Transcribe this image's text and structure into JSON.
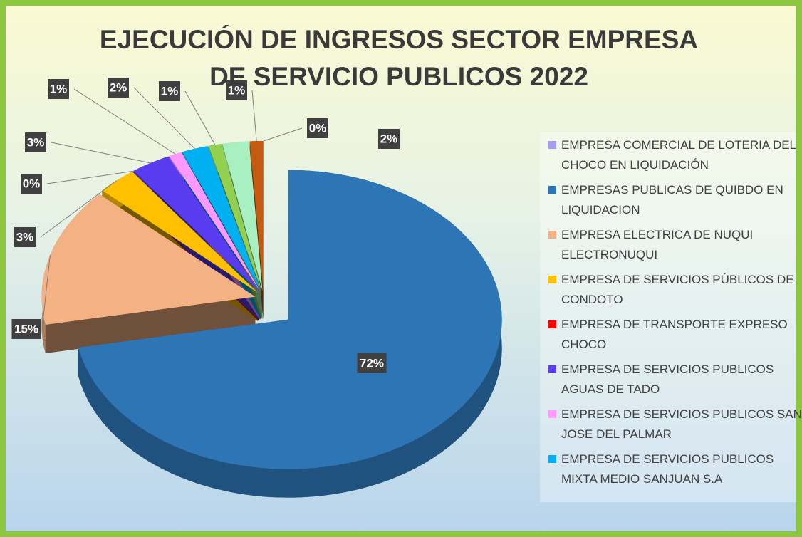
{
  "chart_data": {
    "type": "pie",
    "title": "EJECUCIÓN DE INGRESOS SECTOR EMPRESA DE SERVICIO PUBLICOS 2022",
    "categories": [
      "EMPRESA COMERCIAL DE LOTERIA DEL CHOCO EN LIQUIDACIÓN",
      "EMPRESAS PUBLICAS DE QUIBDO EN LIQUIDACION",
      "EMPRESA ELECTRICA DE NUQUI ELECTRONUQUI",
      "EMPRESA DE SERVICIOS PÚBLICOS DE CONDOTO",
      "EMPRESA DE TRANSPORTE EXPRESO CHOCO",
      "EMPRESA DE SERVICIOS PUBLICOS AGUAS DE TADO",
      "EMPRESA DE SERVICIOS PUBLICOS SAN JOSE DEL PALMAR",
      "EMPRESA DE SERVICIOS PUBLICOS MIXTA MEDIO SANJUAN S.A",
      null,
      null,
      null
    ],
    "values": [
      0,
      72,
      15,
      3,
      0,
      3,
      1,
      2,
      1,
      2,
      1
    ],
    "value_labels": [
      "0%",
      "72%",
      "15%",
      "3%",
      "0%",
      "3%",
      "1%",
      "2%",
      "1%",
      "2%",
      "1%"
    ],
    "colors": [
      "#a79cf2",
      "#2e75b6",
      "#f4b183",
      "#ffc000",
      "#ff0000",
      "#5a3cf0",
      "#ff99ff",
      "#00b0f0",
      "#92d050",
      "#a8f0c0",
      "#c55a11"
    ],
    "legend": "right"
  }
}
